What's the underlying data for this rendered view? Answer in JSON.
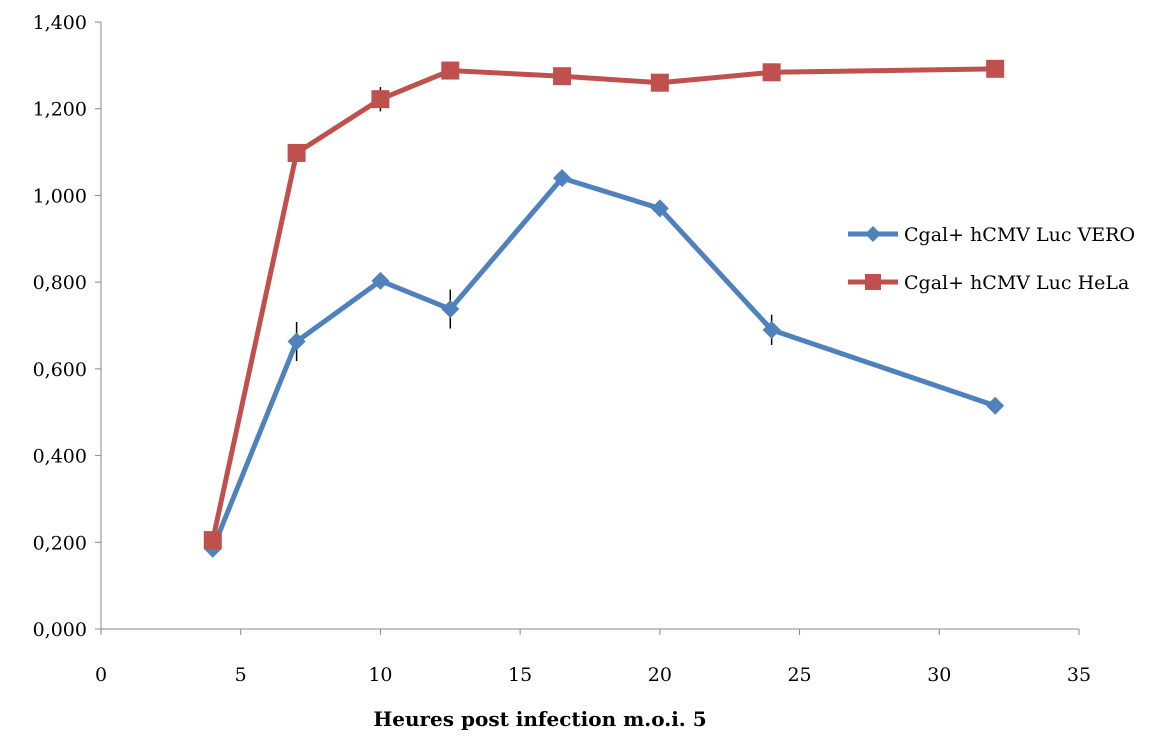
{
  "chart_data": {
    "type": "line",
    "title": "",
    "xlabel": "Heures post infection m.o.i. 5",
    "ylabel": "",
    "xlim": [
      0,
      35
    ],
    "ylim": [
      0,
      1.4
    ],
    "x_ticks": [
      0,
      5,
      10,
      15,
      20,
      25,
      30,
      35
    ],
    "x_tick_labels": [
      "0",
      "5",
      "10",
      "15",
      "20",
      "25",
      "30",
      "35"
    ],
    "y_ticks": [
      0,
      0.2,
      0.4,
      0.6,
      0.8,
      1.0,
      1.2,
      1.4
    ],
    "y_tick_labels": [
      "0,000",
      "0,200",
      "0,400",
      "0,600",
      "0,800",
      "1,000",
      "1,200",
      "1,400"
    ],
    "grid": false,
    "legend_position": "right",
    "series": [
      {
        "name": "Cgal+ hCMV Luc VERO",
        "color": "#4f81bd",
        "marker": "diamond",
        "x": [
          4,
          7,
          10,
          12.5,
          16.5,
          20,
          24,
          32
        ],
        "y": [
          0.185,
          0.663,
          0.803,
          0.738,
          1.04,
          0.97,
          0.69,
          0.515
        ],
        "error": [
          0,
          0.045,
          0,
          0.045,
          0,
          0,
          0.035,
          0
        ]
      },
      {
        "name": "Cgal+ hCMV Luc HeLa",
        "color": "#c0504d",
        "marker": "square",
        "x": [
          4,
          7,
          10,
          12.5,
          16.5,
          20,
          24,
          32
        ],
        "y": [
          0.205,
          1.098,
          1.222,
          1.288,
          1.275,
          1.26,
          1.284,
          1.292
        ],
        "error": [
          0,
          0,
          0.028,
          0,
          0,
          0,
          0,
          0
        ]
      }
    ]
  }
}
